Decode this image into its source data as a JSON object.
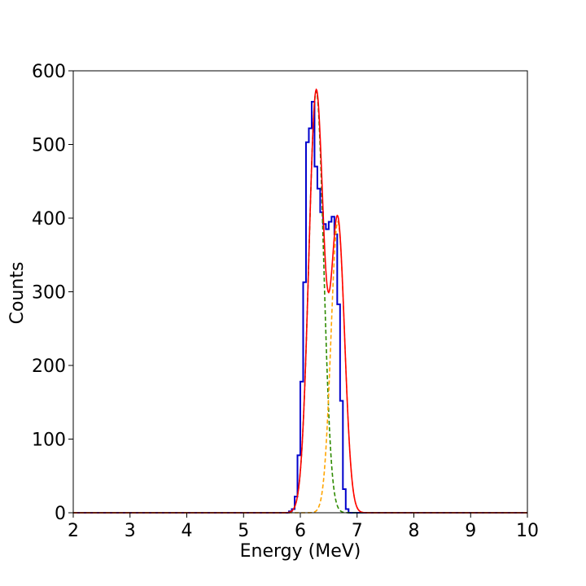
{
  "chart_data": {
    "type": "line",
    "title": "",
    "xlabel": "Energy (MeV)",
    "ylabel": "Counts",
    "xlim": [
      2,
      10
    ],
    "ylim": [
      0,
      600
    ],
    "x_ticks": [
      2,
      3,
      4,
      5,
      6,
      7,
      8,
      9,
      10
    ],
    "y_ticks": [
      0,
      100,
      200,
      300,
      400,
      500,
      600
    ],
    "grid": false,
    "legend": "none",
    "histogram": {
      "color": "#0000cc",
      "bin_width": 0.05,
      "bin_edges_start": 5.8,
      "counts": [
        2,
        5,
        22,
        78,
        178,
        313,
        503,
        522,
        558,
        470,
        440,
        408,
        392,
        385,
        395,
        402,
        378,
        283,
        152,
        32,
        5,
        0
      ]
    },
    "fits": [
      {
        "color": "#2e8b00",
        "style": "dashed",
        "mu": 6.28,
        "sigma": 0.13,
        "amplitude": 572
      },
      {
        "color": "#ffa500",
        "style": "dashed",
        "mu": 6.66,
        "sigma": 0.12,
        "amplitude": 395
      },
      {
        "color": "#ff0000",
        "style": "solid",
        "sum_of": [
          0,
          1
        ]
      }
    ]
  }
}
